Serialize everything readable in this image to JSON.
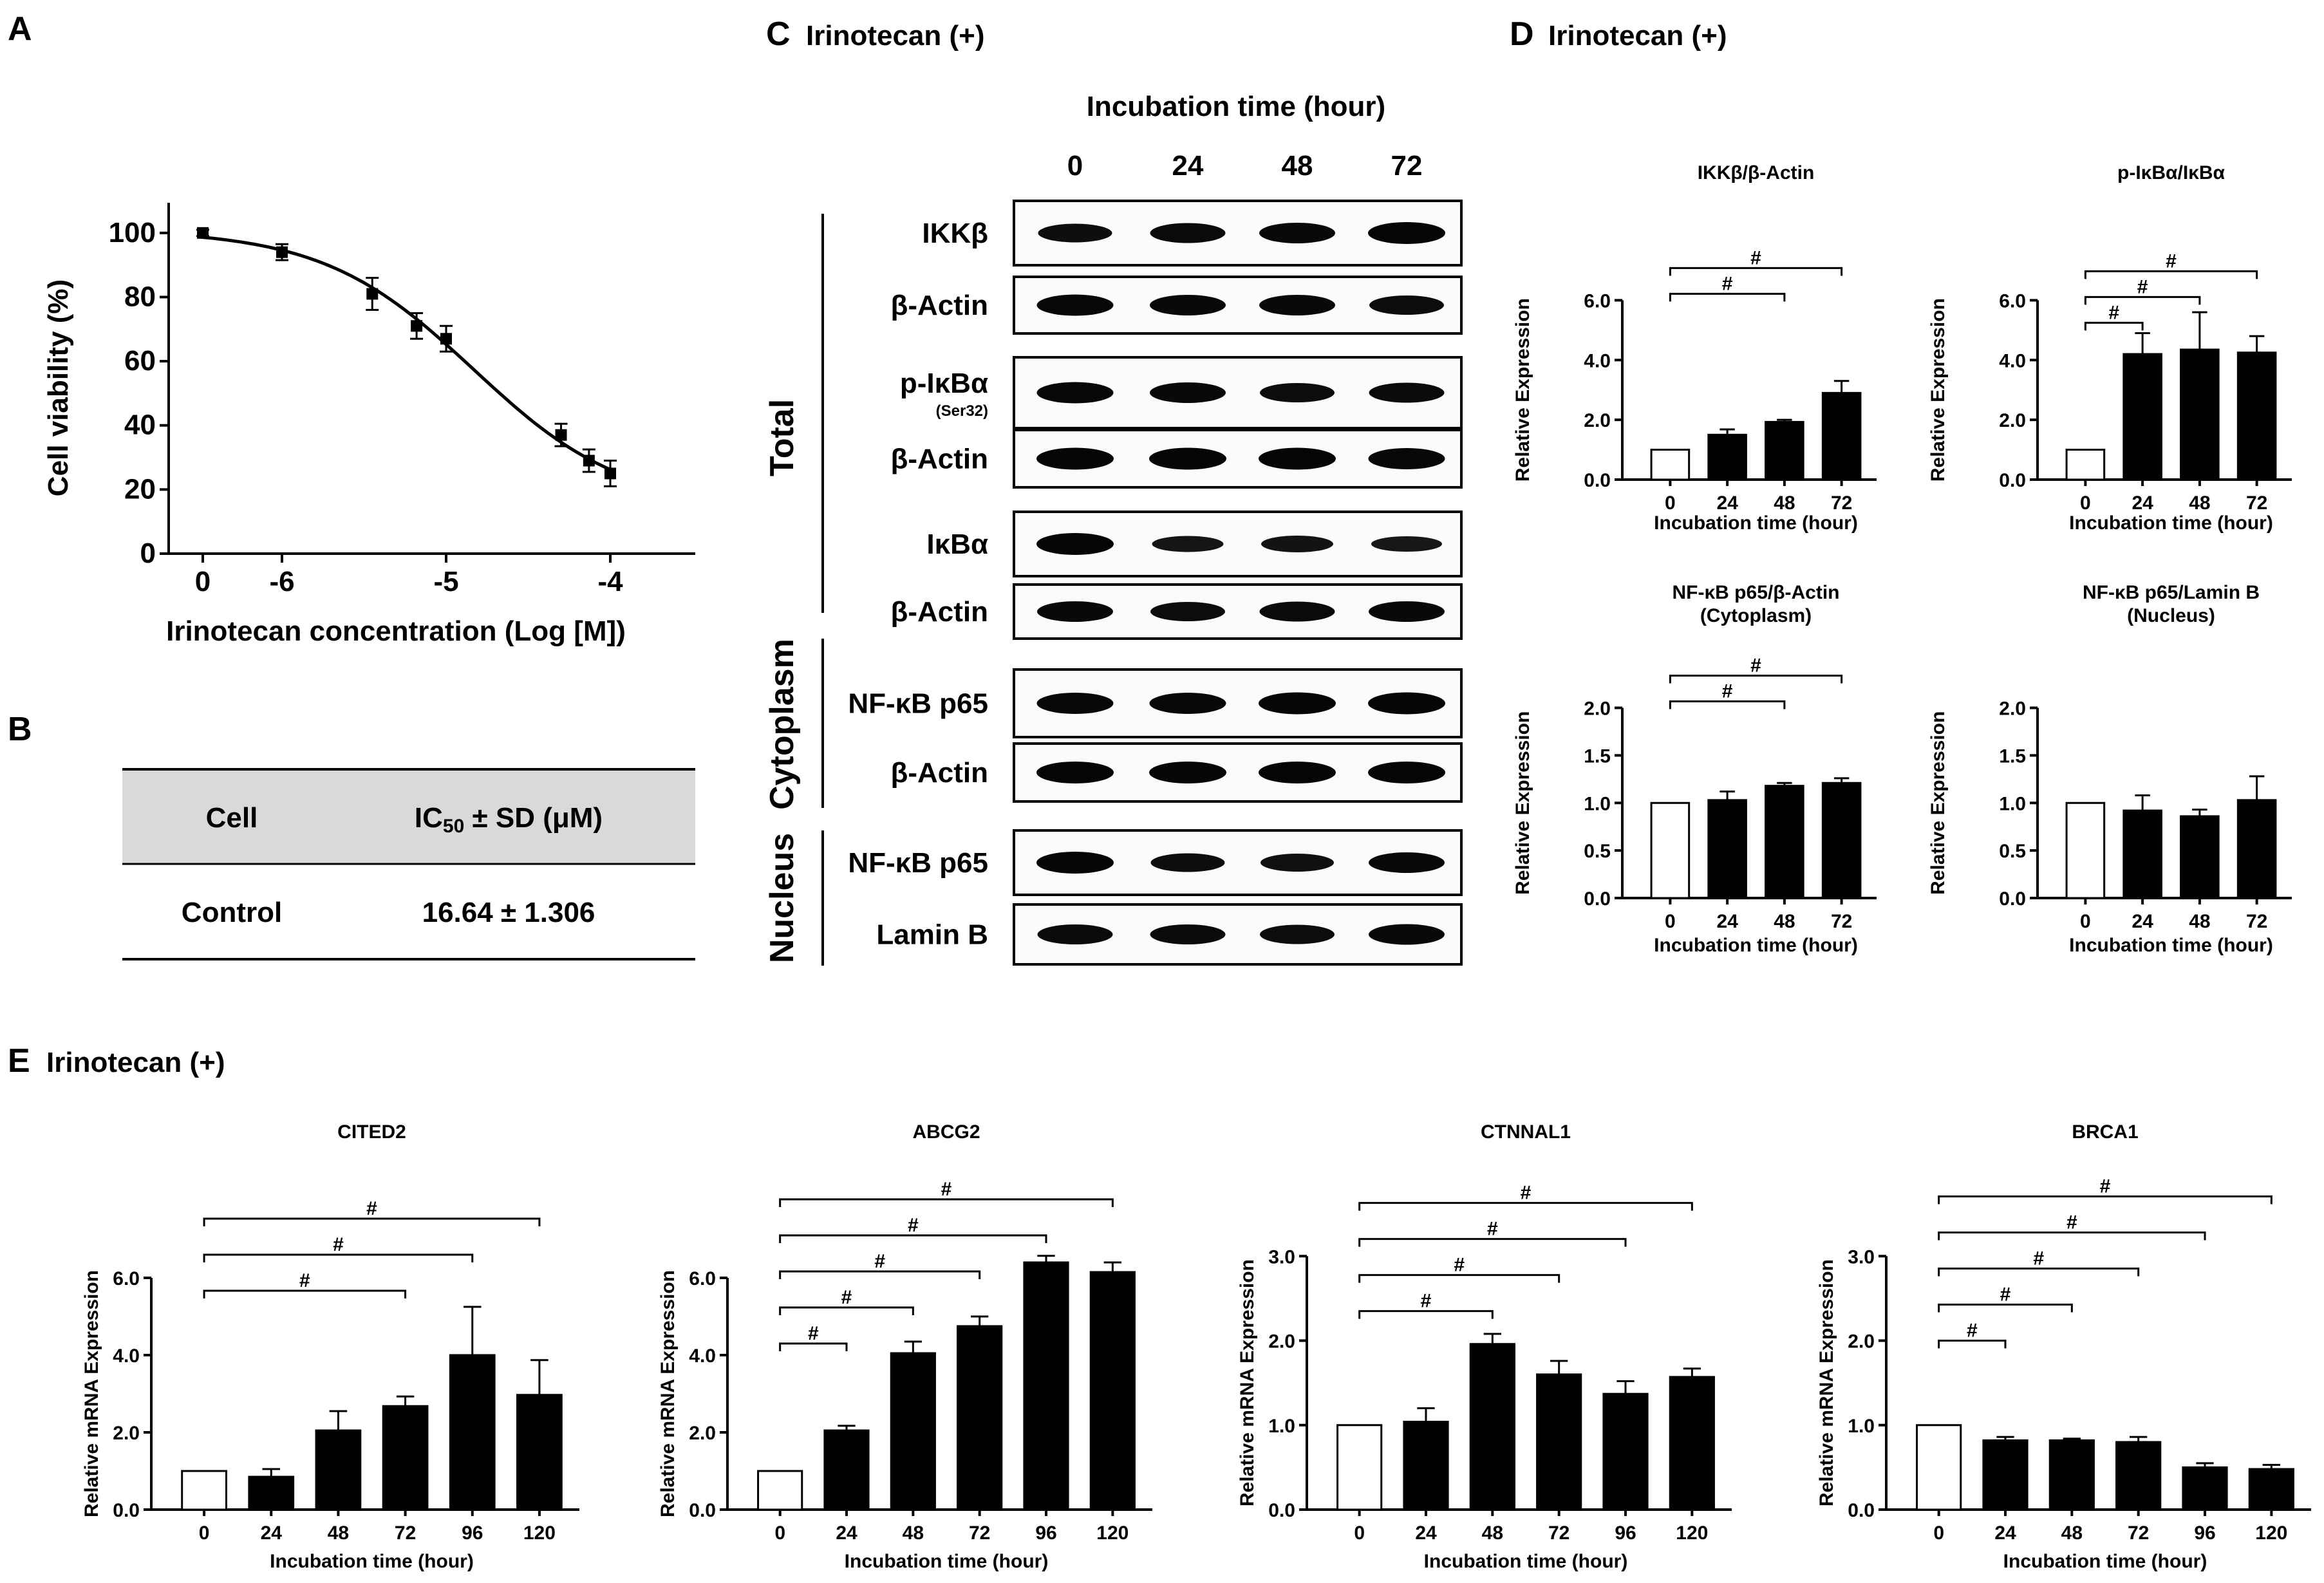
{
  "panel_labels": {
    "A": "A",
    "B": "B",
    "C": "C",
    "D": "D",
    "E": "E"
  },
  "chart_data": [
    {
      "id": "A",
      "type": "line",
      "title": "",
      "xlabel": "Irinotecan concentration (Log [M])",
      "ylabel": "Cell viability (%)",
      "x_ticks": [
        "0",
        "-6",
        "-5",
        "-4"
      ],
      "y_ticks": [
        "0",
        "20",
        "40",
        "60",
        "80",
        "100"
      ],
      "ylim": [
        0,
        110
      ],
      "points": [
        {
          "x": "0",
          "y": 100,
          "err": 1
        },
        {
          "x": -6,
          "y": 94,
          "err": 2.5
        },
        {
          "x": -5.45,
          "y": 81,
          "err": 5
        },
        {
          "x": -5.18,
          "y": 71,
          "err": 4
        },
        {
          "x": -5,
          "y": 67,
          "err": 4
        },
        {
          "x": -4.3,
          "y": 37,
          "err": 3.5
        },
        {
          "x": -4.13,
          "y": 29,
          "err": 3.5
        },
        {
          "x": -4,
          "y": 25,
          "err": 4
        }
      ],
      "curve_note": "sigmoidal fit"
    },
    {
      "id": "D1",
      "type": "bar",
      "title": "IKKβ/β-Actin",
      "xlabel": "Incubation time (hour)",
      "ylabel": "Relative Expression",
      "categories": [
        "0",
        "24",
        "48",
        "72"
      ],
      "values": [
        1.0,
        1.5,
        1.93,
        2.9
      ],
      "errors": [
        0,
        0.18,
        0.07,
        0.4
      ],
      "y_ticks": [
        "0.0",
        "2.0",
        "4.0",
        "6.0"
      ],
      "ylim": [
        0,
        7
      ],
      "annotations": [
        {
          "from": "0",
          "to": "48",
          "label": "#"
        },
        {
          "from": "0",
          "to": "72",
          "label": "#"
        }
      ]
    },
    {
      "id": "D2",
      "type": "bar",
      "title": "p-IκBα/IκBα",
      "xlabel": "Incubation time (hour)",
      "ylabel": "Relative Expression",
      "categories": [
        "0",
        "24",
        "48",
        "72"
      ],
      "values": [
        1.0,
        4.2,
        4.35,
        4.25
      ],
      "errors": [
        0,
        0.7,
        1.25,
        0.55
      ],
      "y_ticks": [
        "0.0",
        "2.0",
        "4.0",
        "6.0"
      ],
      "ylim": [
        0,
        7
      ],
      "annotations": [
        {
          "from": "0",
          "to": "24",
          "label": "#"
        },
        {
          "from": "0",
          "to": "48",
          "label": "#"
        },
        {
          "from": "0",
          "to": "72",
          "label": "#"
        }
      ]
    },
    {
      "id": "D3",
      "type": "bar",
      "title": "NF-κB p65/β-Actin",
      "subtitle": "(Cytoplasm)",
      "xlabel": "Incubation time (hour)",
      "ylabel": "Relative Expression",
      "categories": [
        "0",
        "24",
        "48",
        "72"
      ],
      "values": [
        1.0,
        1.03,
        1.18,
        1.21
      ],
      "errors": [
        0,
        0.09,
        0.03,
        0.05
      ],
      "y_ticks": [
        "0.0",
        "0.5",
        "1.0",
        "1.5",
        "2.0"
      ],
      "ylim": [
        0,
        2.2
      ],
      "annotations": [
        {
          "from": "0",
          "to": "48",
          "label": "#"
        },
        {
          "from": "0",
          "to": "72",
          "label": "#"
        }
      ]
    },
    {
      "id": "D4",
      "type": "bar",
      "title": "NF-κB p65/Lamin B",
      "subtitle": "(Nucleus)",
      "xlabel": "Incubation time (hour)",
      "ylabel": "Relative Expression",
      "categories": [
        "0",
        "24",
        "48",
        "72"
      ],
      "values": [
        1.0,
        0.92,
        0.86,
        1.03
      ],
      "errors": [
        0,
        0.16,
        0.07,
        0.25
      ],
      "y_ticks": [
        "0.0",
        "0.5",
        "1.0",
        "1.5",
        "2.0"
      ],
      "ylim": [
        0,
        2.2
      ],
      "annotations": []
    },
    {
      "id": "E1",
      "type": "bar",
      "title": "CITED2",
      "xlabel": "Incubation time (hour)",
      "ylabel": "Relative mRNA Expression",
      "categories": [
        "0",
        "24",
        "48",
        "72",
        "96",
        "120"
      ],
      "values": [
        1.0,
        0.85,
        2.05,
        2.68,
        4.0,
        2.97
      ],
      "errors": [
        0,
        0.2,
        0.5,
        0.25,
        1.25,
        0.9
      ],
      "y_ticks": [
        "0.0",
        "2.0",
        "4.0",
        "6.0"
      ],
      "ylim": [
        0,
        7
      ],
      "annotations": [
        {
          "from": "0",
          "to": "72",
          "label": "#"
        },
        {
          "from": "0",
          "to": "96",
          "label": "#"
        },
        {
          "from": "0",
          "to": "120",
          "label": "#"
        }
      ]
    },
    {
      "id": "E2",
      "type": "bar",
      "title": "ABCG2",
      "xlabel": "Incubation time (hour)",
      "ylabel": "Relative mRNA Expression",
      "categories": [
        "0",
        "24",
        "48",
        "72",
        "96",
        "120"
      ],
      "values": [
        1.0,
        2.05,
        4.05,
        4.75,
        6.4,
        6.15
      ],
      "errors": [
        0,
        0.12,
        0.3,
        0.25,
        0.17,
        0.25
      ],
      "y_ticks": [
        "0.0",
        "2.0",
        "4.0",
        "6.0"
      ],
      "ylim": [
        0,
        7
      ],
      "annotations": [
        {
          "from": "0",
          "to": "24",
          "label": "#"
        },
        {
          "from": "0",
          "to": "48",
          "label": "#"
        },
        {
          "from": "0",
          "to": "72",
          "label": "#"
        },
        {
          "from": "0",
          "to": "96",
          "label": "#"
        },
        {
          "from": "0",
          "to": "120",
          "label": "#"
        }
      ]
    },
    {
      "id": "E3",
      "type": "bar",
      "title": "CTNNAL1",
      "xlabel": "Incubation time (hour)",
      "ylabel": "Relative mRNA Expression",
      "categories": [
        "0",
        "24",
        "48",
        "72",
        "96",
        "120"
      ],
      "values": [
        1.0,
        1.04,
        1.96,
        1.6,
        1.37,
        1.57
      ],
      "errors": [
        0,
        0.16,
        0.12,
        0.16,
        0.15,
        0.1
      ],
      "y_ticks": [
        "0.0",
        "1.0",
        "2.0",
        "3.0"
      ],
      "ylim": [
        0,
        3.2
      ],
      "annotations": [
        {
          "from": "0",
          "to": "48",
          "label": "#"
        },
        {
          "from": "0",
          "to": "72",
          "label": "#"
        },
        {
          "from": "0",
          "to": "96",
          "label": "#"
        },
        {
          "from": "0",
          "to": "120",
          "label": "#"
        }
      ]
    },
    {
      "id": "E4",
      "type": "bar",
      "title": "BRCA1",
      "xlabel": "Incubation time (hour)",
      "ylabel": "Relative mRNA Expression",
      "categories": [
        "0",
        "24",
        "48",
        "72",
        "96",
        "120"
      ],
      "values": [
        1.0,
        0.82,
        0.82,
        0.8,
        0.5,
        0.48
      ],
      "errors": [
        0,
        0.04,
        0.02,
        0.06,
        0.05,
        0.05
      ],
      "y_ticks": [
        "0.0",
        "1.0",
        "2.0",
        "3.0"
      ],
      "ylim": [
        0,
        3.2
      ],
      "annotations": [
        {
          "from": "0",
          "to": "24",
          "label": "#"
        },
        {
          "from": "0",
          "to": "48",
          "label": "#"
        },
        {
          "from": "0",
          "to": "72",
          "label": "#"
        },
        {
          "from": "0",
          "to": "96",
          "label": "#"
        },
        {
          "from": "0",
          "to": "120",
          "label": "#"
        }
      ]
    }
  ],
  "table_b": {
    "col1": "Cell",
    "col2_prefix": "IC",
    "col2_sub": "50",
    "col2_suffix": " ± SD (μM)",
    "row_cell": "Control",
    "row_value": "16.64 ± 1.306"
  },
  "blot": {
    "title": "Irinotecan (+)",
    "subtitle": "Incubation time (hour)",
    "times": [
      "0",
      "24",
      "48",
      "72"
    ],
    "groups": {
      "total": "Total",
      "cytoplasm": "Cytoplasm",
      "nucleus": "Nucleus"
    },
    "rows": [
      {
        "label": "IKKβ",
        "note": ""
      },
      {
        "label": "β-Actin",
        "note": ""
      },
      {
        "label": "p-IκBα",
        "note": "(Ser32)"
      },
      {
        "label": "β-Actin",
        "note": ""
      },
      {
        "label": "IκBα",
        "note": ""
      },
      {
        "label": "β-Actin",
        "note": ""
      },
      {
        "label": "NF-κB p65",
        "note": ""
      },
      {
        "label": "β-Actin",
        "note": ""
      },
      {
        "label": "NF-κB p65",
        "note": ""
      },
      {
        "label": "Lamin B",
        "note": ""
      }
    ],
    "band_intensity": [
      [
        0.75,
        0.85,
        0.9,
        1.0
      ],
      [
        0.95,
        0.9,
        0.9,
        0.8
      ],
      [
        0.95,
        0.9,
        0.8,
        0.85
      ],
      [
        1.0,
        1.0,
        1.0,
        0.95
      ],
      [
        1.0,
        0.55,
        0.6,
        0.5
      ],
      [
        0.9,
        0.8,
        0.85,
        0.9
      ],
      [
        0.95,
        0.95,
        1.0,
        1.0
      ],
      [
        1.0,
        1.0,
        1.0,
        1.0
      ],
      [
        1.0,
        0.75,
        0.7,
        0.9
      ],
      [
        0.85,
        0.85,
        0.8,
        0.9
      ]
    ]
  },
  "panel_d": {
    "title": "Irinotecan (+)"
  },
  "panel_e": {
    "title": "Irinotecan (+)"
  }
}
